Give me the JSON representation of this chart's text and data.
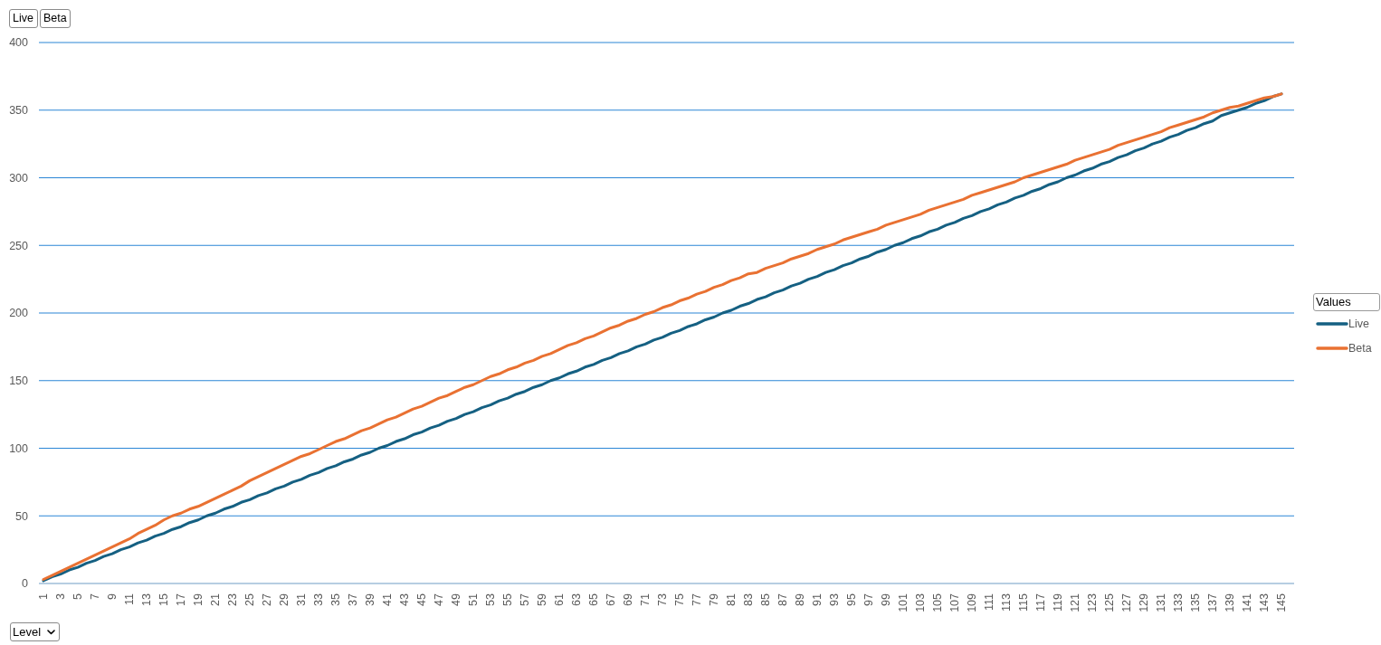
{
  "chart_data": {
    "type": "line",
    "categories": [
      "1",
      null,
      "3",
      null,
      "5",
      null,
      "7",
      null,
      "9",
      null,
      "11",
      null,
      "13",
      null,
      "15",
      null,
      "17",
      null,
      "19",
      null,
      "21",
      null,
      "23",
      null,
      "25",
      null,
      "27",
      null,
      "29",
      null,
      "31",
      null,
      "33",
      null,
      "35",
      null,
      "37",
      null,
      "39",
      null,
      "41",
      null,
      "43",
      null,
      "45",
      null,
      "47",
      null,
      "49",
      null,
      "51",
      null,
      "53",
      null,
      "55",
      null,
      "57",
      null,
      "59",
      null,
      "61",
      null,
      "63",
      null,
      "65",
      null,
      "67",
      null,
      "69",
      null,
      "71",
      null,
      "73",
      null,
      "75",
      null,
      "77",
      null,
      "79",
      null,
      "81",
      null,
      "83",
      null,
      "85",
      null,
      "87",
      null,
      "89",
      null,
      "91",
      null,
      "93",
      null,
      "95",
      null,
      "97",
      null,
      "99",
      null,
      "101",
      null,
      "103",
      null,
      "105",
      null,
      "107",
      null,
      "109",
      null,
      "111",
      null,
      "113",
      null,
      "115",
      null,
      "117",
      null,
      "119",
      null,
      "121",
      null,
      "123",
      null,
      "125",
      null,
      "127",
      null,
      "129",
      null,
      "131",
      null,
      "133",
      null,
      "135",
      null,
      "137",
      null,
      "139",
      null,
      "141",
      null,
      "143",
      null,
      "145"
    ],
    "series": [
      {
        "name": "Live",
        "color": "#156082",
        "values": [
          2,
          5,
          7,
          10,
          12,
          15,
          17,
          20,
          22,
          25,
          27,
          30,
          32,
          35,
          37,
          40,
          42,
          45,
          47,
          50,
          52,
          55,
          57,
          60,
          62,
          65,
          67,
          70,
          72,
          75,
          77,
          80,
          82,
          85,
          87,
          90,
          92,
          95,
          97,
          100,
          102,
          105,
          107,
          110,
          112,
          115,
          117,
          120,
          122,
          125,
          127,
          130,
          132,
          135,
          137,
          140,
          142,
          145,
          147,
          150,
          152,
          155,
          157,
          160,
          162,
          165,
          167,
          170,
          172,
          175,
          177,
          180,
          182,
          185,
          187,
          190,
          192,
          195,
          197,
          200,
          202,
          205,
          207,
          210,
          212,
          215,
          217,
          220,
          222,
          225,
          227,
          230,
          232,
          235,
          237,
          240,
          242,
          245,
          247,
          250,
          252,
          255,
          257,
          260,
          262,
          265,
          267,
          270,
          272,
          275,
          277,
          280,
          282,
          285,
          287,
          290,
          292,
          295,
          297,
          300,
          302,
          305,
          307,
          310,
          312,
          315,
          317,
          320,
          322,
          325,
          327,
          330,
          332,
          335,
          337,
          340,
          342,
          346,
          348,
          350,
          352,
          355,
          357,
          360,
          362
        ]
      },
      {
        "name": "Beta",
        "color": "#e97132",
        "values": [
          3,
          6,
          9,
          12,
          15,
          18,
          21,
          24,
          27,
          30,
          33,
          37,
          40,
          43,
          47,
          50,
          52,
          55,
          57,
          60,
          63,
          66,
          69,
          72,
          76,
          79,
          82,
          85,
          88,
          91,
          94,
          96,
          99,
          102,
          105,
          107,
          110,
          113,
          115,
          118,
          121,
          123,
          126,
          129,
          131,
          134,
          137,
          139,
          142,
          145,
          147,
          150,
          153,
          155,
          158,
          160,
          163,
          165,
          168,
          170,
          173,
          176,
          178,
          181,
          183,
          186,
          189,
          191,
          194,
          196,
          199,
          201,
          204,
          206,
          209,
          211,
          214,
          216,
          219,
          221,
          224,
          226,
          229,
          230,
          233,
          235,
          237,
          240,
          242,
          244,
          247,
          249,
          251,
          254,
          256,
          258,
          260,
          262,
          265,
          267,
          269,
          271,
          273,
          276,
          278,
          280,
          282,
          284,
          287,
          289,
          291,
          293,
          295,
          297,
          300,
          302,
          304,
          306,
          308,
          310,
          313,
          315,
          317,
          319,
          321,
          324,
          326,
          328,
          330,
          332,
          334,
          337,
          339,
          341,
          343,
          345,
          348,
          350,
          352,
          353,
          355,
          357,
          359,
          360,
          362
        ]
      }
    ],
    "ylim": [
      0,
      400
    ],
    "yticks": [
      0,
      50,
      100,
      150,
      200,
      250,
      300,
      350,
      400
    ],
    "grid": "y",
    "legend": "right",
    "legend_title": "Values",
    "xlabel": "Level",
    "annotations": [
      "Live",
      "Beta"
    ],
    "marker": "none",
    "line_style": "solid"
  }
}
